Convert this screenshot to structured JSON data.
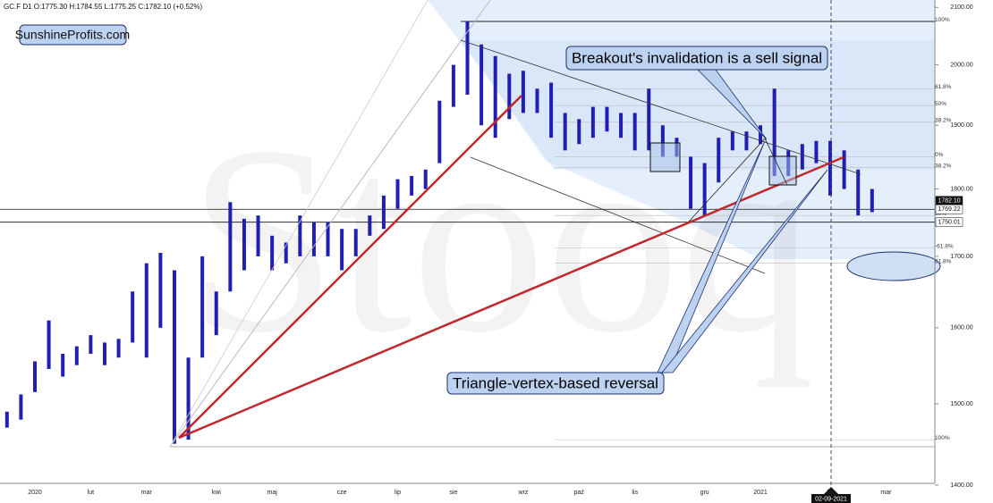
{
  "chart_data": {
    "type": "range-bar",
    "title": "GC.F  D1  O:1775.30  H:1784.55  L:1775.25  C:1782.10  (+0.52%)",
    "watermark": "Stooq",
    "brand": "SunshineProfits.com",
    "annotations": [
      "Breakout's invalidation is a sell signal",
      "Triangle-vertex-based reversal"
    ],
    "cursor_date": "02-09-2021",
    "color": "#1f1fb4",
    "log_scale": true,
    "ylim": [
      1382,
      2110
    ],
    "yticks": [
      {
        "value": 2100,
        "label": "2100.00"
      },
      {
        "value": 2000,
        "label": "2000.00"
      },
      {
        "value": 1900,
        "label": "1900.00"
      },
      {
        "value": 1800,
        "label": "1800.00"
      },
      {
        "value": 1700,
        "label": "1700.00"
      },
      {
        "value": 1600,
        "label": "1600.00"
      },
      {
        "value": 1500,
        "label": "1500.00"
      },
      {
        "value": 1400,
        "label": "1400.00"
      }
    ],
    "price_labels": [
      {
        "value": 1782.1,
        "label": "1782.10"
      },
      {
        "value": 1769.22,
        "label": "1769.22"
      },
      {
        "value": 1750.01,
        "label": "1750.01"
      }
    ],
    "fib_levels": [
      {
        "value": 2075,
        "label": "100%"
      },
      {
        "value": 1960,
        "label": "61.8%"
      },
      {
        "value": 1932,
        "label": "50%"
      },
      {
        "value": 1905,
        "label": "38.2%"
      },
      {
        "value": 1850,
        "label": "0%"
      },
      {
        "value": 1833,
        "label": "38.2%"
      },
      {
        "value": 1760,
        "label": "50%"
      },
      {
        "value": 1712,
        "label": "-61.8%"
      },
      {
        "value": 1690,
        "label": "61.8%"
      },
      {
        "value": 1455,
        "label": "100%"
      }
    ],
    "categories": [
      null,
      null,
      "2020",
      null,
      null,
      null,
      "lut",
      null,
      null,
      null,
      "mar",
      null,
      null,
      null,
      null,
      "kwi",
      null,
      null,
      null,
      "maj",
      null,
      null,
      null,
      null,
      "cze",
      null,
      null,
      null,
      "lip",
      null,
      null,
      null,
      "sie",
      null,
      null,
      null,
      null,
      "wrz",
      null,
      null,
      null,
      "paź",
      null,
      null,
      null,
      "lis",
      null,
      null,
      null,
      null,
      "gru",
      null,
      null,
      null,
      "2021",
      null,
      null,
      null,
      null,
      "lut",
      null,
      null,
      null,
      "mar",
      null,
      null,
      null
    ],
    "high": [
      1490,
      1512,
      1555,
      1610,
      1565,
      1575,
      1590,
      1580,
      1585,
      1650,
      1690,
      1705,
      1680,
      1560,
      1700,
      1650,
      1780,
      1755,
      1760,
      1730,
      1720,
      1760,
      1750,
      1750,
      1740,
      1740,
      1760,
      1790,
      1815,
      1820,
      1830,
      1940,
      2000,
      2075,
      2035,
      2015,
      1985,
      1990,
      1960,
      1970,
      1920,
      1910,
      1930,
      1930,
      1920,
      1920,
      1960,
      1900,
      1880,
      1850,
      1840,
      1880,
      1890,
      1890,
      1900,
      1960,
      1860,
      1870,
      1875,
      1875,
      1860,
      1830,
      1800,
      null,
      null,
      null,
      null
    ],
    "low": [
      1470,
      1480,
      1515,
      1545,
      1535,
      1550,
      1565,
      1550,
      1560,
      1580,
      1560,
      1600,
      1450,
      1455,
      1560,
      1590,
      1650,
      1680,
      1700,
      1680,
      1690,
      1700,
      1700,
      1700,
      1680,
      1700,
      1730,
      1740,
      1770,
      1790,
      1800,
      1840,
      1930,
      1950,
      1900,
      1880,
      1910,
      1920,
      1920,
      1880,
      1860,
      1870,
      1880,
      1890,
      1880,
      1860,
      1860,
      1850,
      1850,
      1770,
      1760,
      1810,
      1860,
      1860,
      1870,
      1820,
      1820,
      1830,
      1840,
      1790,
      1800,
      1760,
      1765,
      null,
      null,
      null,
      null
    ]
  }
}
